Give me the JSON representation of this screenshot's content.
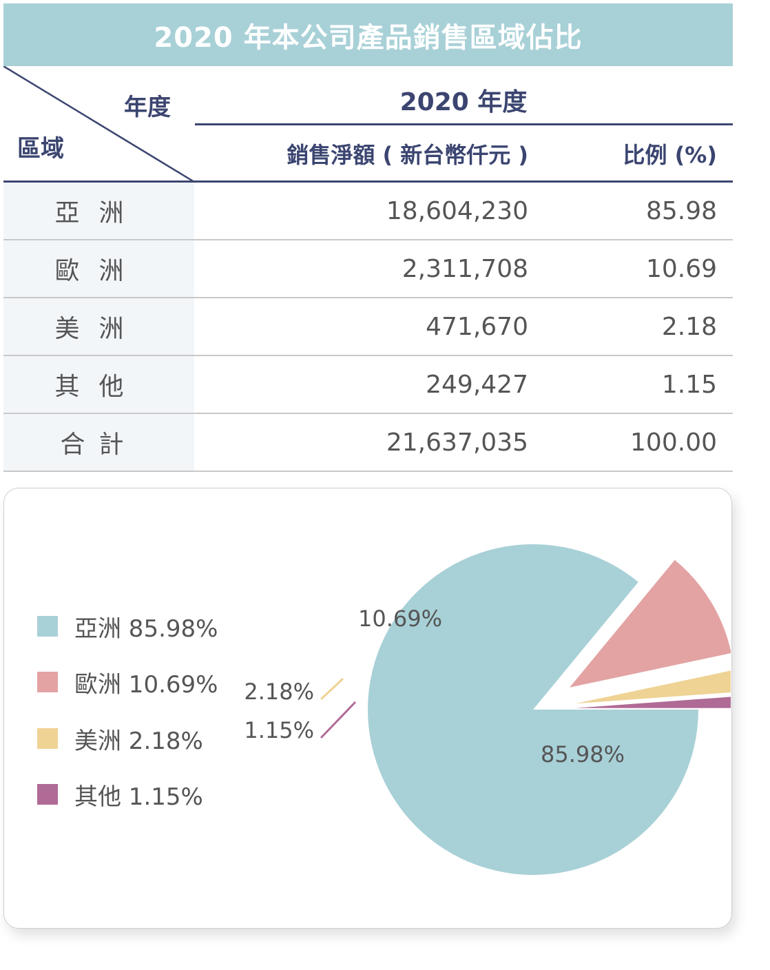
{
  "title": "2020 年本公司產品銷售區域佔比",
  "table": {
    "header": {
      "year_label": "年度",
      "region_label": "區域",
      "year_group": "2020 年度",
      "col_amount": "銷售淨額 ( 新台幣仟元 )",
      "col_pct": "比例 (%)"
    },
    "rows": [
      {
        "region": "亞洲",
        "amount": "18,604,230",
        "pct": "85.98"
      },
      {
        "region": "歐洲",
        "amount": "2,311,708",
        "pct": "10.69"
      },
      {
        "region": "美洲",
        "amount": "471,670",
        "pct": "2.18"
      },
      {
        "region": "其他",
        "amount": "249,427",
        "pct": "1.15"
      },
      {
        "region": "合計",
        "amount": "21,637,035",
        "pct": "100.00"
      }
    ]
  },
  "chart_data": {
    "type": "pie",
    "categories": [
      "亞洲",
      "歐洲",
      "美洲",
      "其他"
    ],
    "values": [
      85.98,
      10.69,
      2.18,
      1.15
    ],
    "slice_labels": [
      "85.98%",
      "10.69%",
      "2.18%",
      "1.15%"
    ],
    "legend": [
      "亞洲 85.98%",
      "歐洲 10.69%",
      "美洲 2.18%",
      "其他 1.15%"
    ],
    "legend_position": "left",
    "exploded": [
      false,
      true,
      true,
      true
    ],
    "colors": [
      "#a8d0d7",
      "#e3a3a3",
      "#efd394",
      "#b06a96"
    ]
  },
  "colors": {
    "title_bg": "#a8d0d7",
    "header_text": "#3b4570",
    "region_cell_bg": "#f3f6f9"
  }
}
